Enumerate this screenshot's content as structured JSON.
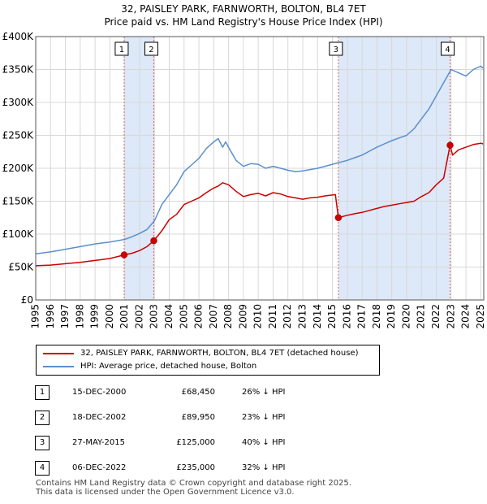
{
  "header": {
    "title": "32, PAISLEY PARK, FARNWORTH, BOLTON, BL4 7ET",
    "subtitle": "Price paid vs. HM Land Registry's House Price Index (HPI)"
  },
  "colors": {
    "price_paid": "#cc0000",
    "hpi": "#5b8fcc",
    "shade": "#dde8f8",
    "grid": "#d8d8d8",
    "marker_line": "#e06666"
  },
  "chart_data": {
    "type": "line",
    "title": "32, PAISLEY PARK, FARNWORTH, BOLTON, BL4 7ET",
    "subtitle": "Price paid vs. HM Land Registry's House Price Index (HPI)",
    "xlabel": "",
    "ylabel": "",
    "xlim": [
      1995,
      2025.2
    ],
    "ylim": [
      0,
      400000
    ],
    "x_ticks": [
      1995,
      1996,
      1997,
      1998,
      1999,
      2000,
      2001,
      2002,
      2003,
      2004,
      2005,
      2006,
      2007,
      2008,
      2009,
      2010,
      2011,
      2012,
      2013,
      2014,
      2015,
      2016,
      2017,
      2018,
      2019,
      2020,
      2021,
      2022,
      2023,
      2024,
      2025
    ],
    "x_tick_labels": [
      "1995",
      "1996",
      "1997",
      "1998",
      "1999",
      "2000",
      "2001",
      "2002",
      "2003",
      "2004",
      "2005",
      "2006",
      "2007",
      "2008",
      "2009",
      "2010",
      "2011",
      "2012",
      "2013",
      "2014",
      "2015",
      "2016",
      "2017",
      "2018",
      "2019",
      "2020",
      "2021",
      "2022",
      "2023",
      "2024",
      "2025"
    ],
    "y_ticks": [
      0,
      50000,
      100000,
      150000,
      200000,
      250000,
      300000,
      350000,
      400000
    ],
    "y_tick_labels": [
      "£0",
      "£50K",
      "£100K",
      "£150K",
      "£200K",
      "£250K",
      "£300K",
      "£350K",
      "£400K"
    ],
    "grid": true,
    "legend_position": "below-chart",
    "series": [
      {
        "name": "32, PAISLEY PARK, FARNWORTH, BOLTON, BL4 7ET (detached house)",
        "color": "#cc0000",
        "x": [
          1995,
          1996,
          1997,
          1998,
          1999,
          2000,
          2000.96,
          2001.5,
          2002,
          2002.5,
          2002.96,
          2003.5,
          2004,
          2004.5,
          2005,
          2005.5,
          2006,
          2006.5,
          2007,
          2007.3,
          2007.6,
          2008,
          2008.5,
          2009,
          2009.5,
          2010,
          2010.5,
          2011,
          2011.5,
          2012,
          2012.5,
          2013,
          2013.5,
          2014,
          2014.5,
          2015.2,
          2015.4,
          2015.9,
          2016.5,
          2017,
          2017.5,
          2018,
          2018.5,
          2019,
          2019.5,
          2020,
          2020.5,
          2021,
          2021.5,
          2022,
          2022.5,
          2022.93,
          2023.1,
          2023.5,
          2024,
          2024.5,
          2025,
          2025.15
        ],
        "y": [
          52000,
          53000,
          55000,
          57000,
          60000,
          63000,
          68450,
          71000,
          75000,
          81000,
          89950,
          105000,
          122000,
          130000,
          145000,
          150000,
          155000,
          163000,
          170000,
          173000,
          178000,
          175000,
          165000,
          157000,
          160000,
          162000,
          158000,
          163000,
          161000,
          157000,
          155000,
          153000,
          155000,
          156000,
          158000,
          160000,
          125000,
          128000,
          131000,
          133000,
          136000,
          139000,
          142000,
          144000,
          146000,
          148000,
          150000,
          157000,
          163000,
          175000,
          185000,
          235000,
          220000,
          228000,
          232000,
          236000,
          238000,
          237000
        ]
      },
      {
        "name": "HPI: Average price, detached house, Bolton",
        "color": "#5b8fcc",
        "x": [
          1995,
          1996,
          1997,
          1998,
          1999,
          2000,
          2001,
          2001.5,
          2002,
          2002.5,
          2003,
          2003.5,
          2004,
          2004.5,
          2005,
          2005.5,
          2006,
          2006.5,
          2007,
          2007.3,
          2007.6,
          2007.8,
          2008,
          2008.5,
          2009,
          2009.5,
          2010,
          2010.5,
          2011,
          2011.5,
          2012,
          2012.5,
          2013,
          2013.5,
          2014,
          2014.5,
          2015,
          2015.5,
          2016,
          2016.5,
          2017,
          2017.5,
          2018,
          2018.5,
          2019,
          2019.5,
          2020,
          2020.5,
          2021,
          2021.5,
          2022,
          2022.5,
          2023,
          2023.5,
          2024,
          2024.5,
          2025,
          2025.15
        ],
        "y": [
          70000,
          73000,
          77000,
          81000,
          85000,
          88000,
          92000,
          96000,
          101000,
          107000,
          120000,
          145000,
          160000,
          175000,
          195000,
          205000,
          215000,
          230000,
          240000,
          245000,
          232000,
          240000,
          232000,
          212000,
          203000,
          207000,
          206000,
          200000,
          203000,
          200000,
          197000,
          195000,
          196000,
          198000,
          200000,
          203000,
          206000,
          209000,
          212000,
          216000,
          220000,
          226000,
          232000,
          237000,
          242000,
          246000,
          250000,
          260000,
          275000,
          290000,
          310000,
          330000,
          350000,
          345000,
          340000,
          350000,
          355000,
          352000
        ]
      }
    ],
    "sale_markers": [
      {
        "label": "1",
        "x": 2000.96,
        "y": 68450
      },
      {
        "label": "2",
        "x": 2002.96,
        "y": 89950
      },
      {
        "label": "3",
        "x": 2015.4,
        "y": 125000
      },
      {
        "label": "4",
        "x": 2022.93,
        "y": 235000
      }
    ],
    "shaded_ranges": [
      [
        2000.96,
        2002.96
      ],
      [
        2015.4,
        2022.93
      ]
    ]
  },
  "legend": {
    "items": [
      {
        "label": "32, PAISLEY PARK, FARNWORTH, BOLTON, BL4 7ET (detached house)"
      },
      {
        "label": "HPI: Average price, detached house, Bolton"
      }
    ]
  },
  "sales": [
    {
      "num": "1",
      "date": "15-DEC-2000",
      "price": "£68,450",
      "hpi": "26% ↓ HPI"
    },
    {
      "num": "2",
      "date": "18-DEC-2002",
      "price": "£89,950",
      "hpi": "23% ↓ HPI"
    },
    {
      "num": "3",
      "date": "27-MAY-2015",
      "price": "£125,000",
      "hpi": "40% ↓ HPI"
    },
    {
      "num": "4",
      "date": "06-DEC-2022",
      "price": "£235,000",
      "hpi": "32% ↓ HPI"
    }
  ],
  "footer": {
    "line1": "Contains HM Land Registry data © Crown copyright and database right 2025.",
    "line2": "This data is licensed under the Open Government Licence v3.0."
  }
}
